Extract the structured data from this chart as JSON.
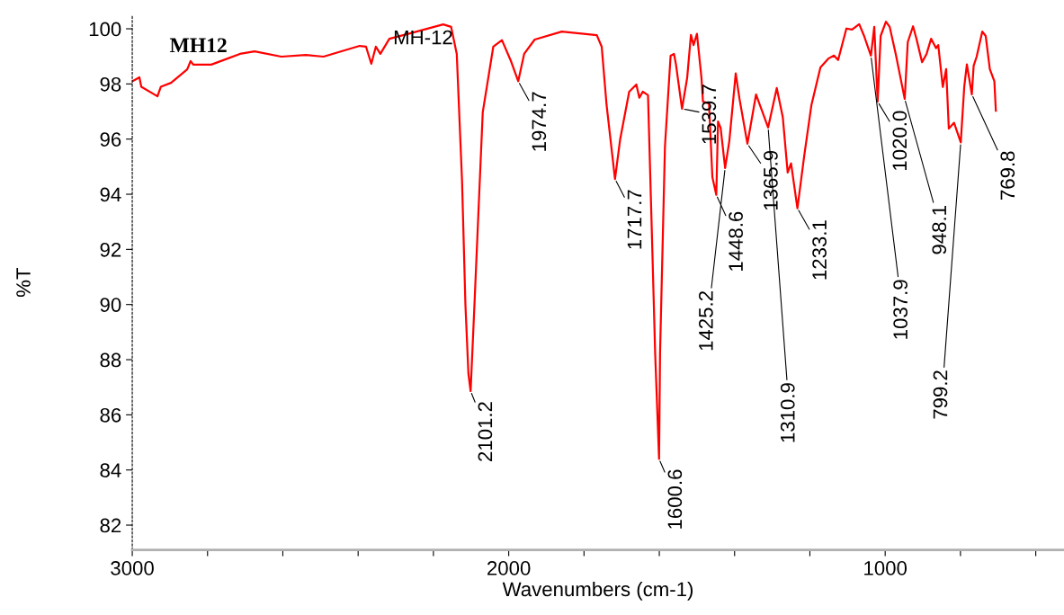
{
  "chart_data": {
    "type": "line",
    "xlabel": "Wavenumbers (cm-1)",
    "ylabel": "%T",
    "xlim": [
      3000,
      525
    ],
    "ylim": [
      81.1,
      100.5
    ],
    "xticks": [
      3000,
      {
        "value": 2800,
        "label": null
      },
      {
        "value": 2600,
        "label": null
      },
      {
        "value": 2400,
        "label": null
      },
      {
        "value": 2200,
        "label": null
      },
      2000,
      {
        "value": 1800,
        "label": null
      },
      {
        "value": 1600,
        "label": null
      },
      {
        "value": 1400,
        "label": null
      },
      {
        "value": 1200,
        "label": null
      },
      1000,
      {
        "value": 800,
        "label": null
      },
      {
        "value": 600,
        "label": null
      }
    ],
    "yticks": [
      82,
      84,
      86,
      88,
      90,
      92,
      94,
      96,
      98,
      100
    ],
    "grid": false,
    "marker": "none",
    "line_style": "solid",
    "series": [
      {
        "color": "#ff0000",
        "x": [
          2999,
          2981,
          2976,
          2933,
          2924,
          2897,
          2854,
          2845,
          2838,
          2790,
          2714,
          2675,
          2604,
          2539,
          2492,
          2396,
          2379,
          2365,
          2353,
          2341,
          2317,
          2260,
          2174,
          2153,
          2138,
          2124,
          2115,
          2107,
          2101.2,
          2091,
          2069,
          2041,
          2018,
          1995,
          1974.7,
          1959,
          1931,
          1859,
          1766,
          1753,
          1740,
          1717.7,
          1704,
          1680,
          1661,
          1653,
          1644,
          1630,
          1621,
          1611,
          1600.6,
          1598,
          1585,
          1570,
          1561,
          1556,
          1539.7,
          1526,
          1516,
          1509,
          1500,
          1488,
          1484,
          1468,
          1459,
          1448.6,
          1444,
          1437,
          1425.2,
          1414,
          1397,
          1387,
          1365.9,
          1343,
          1310.9,
          1288,
          1272,
          1259,
          1250,
          1233.1,
          1215,
          1196,
          1172,
          1151,
          1136,
          1125,
          1103,
          1088,
          1069,
          1056,
          1037.9,
          1029,
          1020.0,
          1012,
          998,
          988,
          972,
          948.1,
          940,
          926,
          917,
          902,
          890,
          878,
          865,
          859,
          847,
          838,
          831,
          817,
          799.2,
          790,
          783,
          769.8,
          765,
          757,
          742,
          733,
          722,
          710,
          706
        ],
        "values": [
          98.1,
          98.24,
          97.9,
          97.55,
          97.9,
          98.04,
          98.53,
          98.83,
          98.7,
          98.7,
          99.09,
          99.18,
          98.99,
          99.05,
          98.99,
          99.38,
          99.35,
          98.73,
          99.35,
          99.09,
          99.64,
          99.84,
          100.16,
          100.07,
          99.09,
          94.49,
          89.99,
          87.48,
          86.86,
          90.0,
          96.97,
          99.35,
          99.59,
          98.86,
          98.1,
          99.09,
          99.61,
          99.9,
          99.77,
          99.35,
          97.23,
          94.55,
          95.99,
          97.72,
          97.98,
          97.5,
          97.72,
          97.59,
          93.2,
          88.23,
          84.4,
          88.23,
          95.73,
          99.02,
          99.09,
          98.73,
          97.1,
          98.22,
          99.78,
          99.41,
          99.82,
          98.22,
          97.36,
          97.29,
          94.62,
          93.98,
          96.64,
          96.4,
          94.95,
          95.93,
          98.38,
          97.46,
          95.83,
          97.62,
          96.42,
          97.85,
          96.8,
          94.79,
          95.12,
          93.49,
          95.4,
          97.23,
          98.6,
          98.92,
          99.03,
          98.87,
          100.01,
          99.97,
          100.17,
          99.74,
          99.03,
          100.07,
          97.36,
          99.74,
          100.26,
          100.07,
          99.09,
          97.46,
          99.52,
          100.09,
          99.64,
          98.79,
          99.09,
          99.64,
          99.3,
          99.41,
          97.89,
          98.54,
          96.38,
          96.59,
          95.88,
          97.89,
          98.71,
          97.62,
          98.66,
          98.99,
          99.9,
          99.74,
          98.54,
          98.1,
          97.03
        ]
      }
    ],
    "annotations": [
      "MH12",
      "MH-12",
      {
        "text": "2101.2",
        "x": 2101.2,
        "y": 86.86
      },
      {
        "text": "1974.7",
        "x": 1974.7,
        "y": 98.1
      },
      {
        "text": "1717.7",
        "x": 1717.7,
        "y": 94.55
      },
      {
        "text": "1600.6",
        "x": 1600.6,
        "y": 84.4
      },
      {
        "text": "1539.7",
        "x": 1539.7,
        "y": 97.1
      },
      {
        "text": "1448.6",
        "x": 1448.6,
        "y": 93.98
      },
      {
        "text": "1425.2",
        "x": 1425.2,
        "y": 94.95
      },
      {
        "text": "1365.9",
        "x": 1365.9,
        "y": 95.83
      },
      {
        "text": "1310.9",
        "x": 1310.9,
        "y": 96.42
      },
      {
        "text": "1233.1",
        "x": 1233.1,
        "y": 93.49
      },
      {
        "text": "1037.9",
        "x": 1037.9,
        "y": 99.03
      },
      {
        "text": "1020.0",
        "x": 1020.0,
        "y": 97.36
      },
      {
        "text": "948.1",
        "x": 948.1,
        "y": 97.46
      },
      {
        "text": "799.2",
        "x": 799.2,
        "y": 95.88
      },
      {
        "text": "769.8",
        "x": 769.8,
        "y": 97.62
      }
    ]
  }
}
